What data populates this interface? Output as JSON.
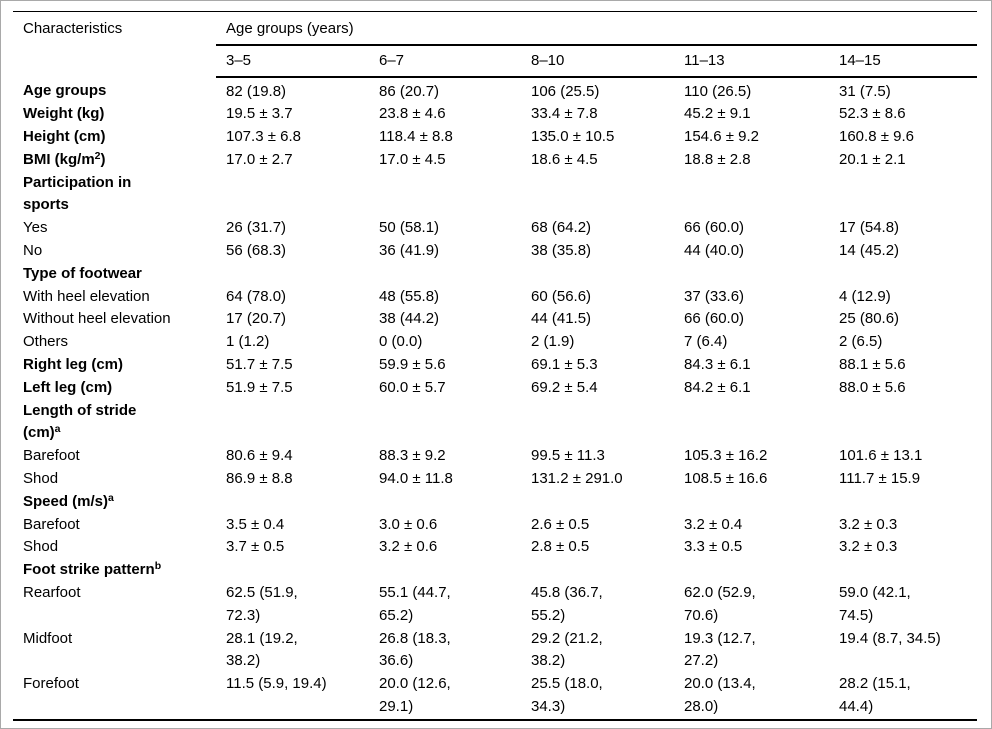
{
  "table": {
    "header": {
      "characteristics": "Characteristics",
      "group_title": "Age groups (years)",
      "age_groups": [
        "3–5",
        "6–7",
        "8–10",
        "11–13",
        "14–15"
      ]
    },
    "rows": [
      {
        "label": "Age groups",
        "bold": true,
        "values": [
          "82 (19.8)",
          "86 (20.7)",
          "106 (25.5)",
          "110 (26.5)",
          "31 (7.5)"
        ]
      },
      {
        "label": "Weight (kg)",
        "bold": true,
        "values": [
          "19.5 ± 3.7",
          "23.8 ± 4.6",
          "33.4 ± 7.8",
          "45.2 ± 9.1",
          "52.3 ± 8.6"
        ]
      },
      {
        "label": "Height (cm)",
        "bold": true,
        "values": [
          "107.3 ± 6.8",
          "118.4 ± 8.8",
          "135.0 ± 10.5",
          "154.6 ± 9.2",
          "160.8 ± 9.6"
        ]
      },
      {
        "label": "BMI (kg/m",
        "sup": "2",
        "label_post": ")",
        "bold": true,
        "values": [
          "17.0 ± 2.7",
          "17.0 ± 4.5",
          "18.6 ± 4.5",
          "18.8 ± 2.8",
          "20.1 ± 2.1"
        ]
      },
      {
        "label": "Participation in\nsports",
        "bold": true,
        "values": [
          "",
          "",
          "",
          "",
          ""
        ]
      },
      {
        "label": "Yes",
        "bold": false,
        "values": [
          "26 (31.7)",
          "50 (58.1)",
          "68 (64.2)",
          "66 (60.0)",
          "17 (54.8)"
        ]
      },
      {
        "label": "No",
        "bold": false,
        "values": [
          "56 (68.3)",
          "36 (41.9)",
          "38 (35.8)",
          "44 (40.0)",
          "14 (45.2)"
        ]
      },
      {
        "label": "Type of footwear",
        "bold": true,
        "values": [
          "",
          "",
          "",
          "",
          ""
        ]
      },
      {
        "label": "With heel elevation",
        "bold": false,
        "values": [
          "64 (78.0)",
          "48 (55.8)",
          "60 (56.6)",
          "37 (33.6)",
          "4 (12.9)"
        ]
      },
      {
        "label": "Without heel elevation",
        "bold": false,
        "values": [
          "17 (20.7)",
          "38 (44.2)",
          "44 (41.5)",
          "66 (60.0)",
          "25 (80.6)"
        ]
      },
      {
        "label": "Others",
        "bold": false,
        "values": [
          "1 (1.2)",
          "0 (0.0)",
          "2 (1.9)",
          "7 (6.4)",
          "2 (6.5)"
        ]
      },
      {
        "label": "Right leg (cm)",
        "bold": true,
        "values": [
          "51.7 ± 7.5",
          "59.9 ± 5.6",
          "69.1 ± 5.3",
          "84.3 ± 6.1",
          "88.1 ± 5.6"
        ]
      },
      {
        "label": "Left leg (cm)",
        "bold": true,
        "values": [
          "51.9 ± 7.5",
          "60.0 ± 5.7",
          "69.2 ± 5.4",
          "84.2 ± 6.1",
          "88.0 ± 5.6"
        ]
      },
      {
        "label": "Length of stride\n(cm)",
        "sup": "a",
        "bold": true,
        "values": [
          "",
          "",
          "",
          "",
          ""
        ]
      },
      {
        "label": "Barefoot",
        "bold": false,
        "values": [
          "80.6 ± 9.4",
          "88.3 ± 9.2",
          "99.5 ± 11.3",
          "105.3 ± 16.2",
          "101.6 ± 13.1"
        ]
      },
      {
        "label": "Shod",
        "bold": false,
        "values": [
          "86.9 ± 8.8",
          "94.0 ± 11.8",
          "131.2 ± 291.0",
          "108.5 ± 16.6",
          "111.7 ± 15.9"
        ]
      },
      {
        "label": "Speed (m/s)",
        "sup": "a",
        "bold": true,
        "values": [
          "",
          "",
          "",
          "",
          ""
        ]
      },
      {
        "label": "Barefoot",
        "bold": false,
        "values": [
          "3.5 ± 0.4",
          "3.0 ± 0.6",
          "2.6 ± 0.5",
          "3.2 ± 0.4",
          "3.2 ± 0.3"
        ]
      },
      {
        "label": "Shod",
        "bold": false,
        "values": [
          "3.7 ± 0.5",
          "3.2 ± 0.6",
          "2.8 ± 0.5",
          "3.3 ± 0.5",
          "3.2 ± 0.3"
        ]
      },
      {
        "label": "Foot strike pattern",
        "sup": "b",
        "bold": true,
        "values": [
          "",
          "",
          "",
          "",
          ""
        ]
      },
      {
        "label": "Rearfoot",
        "bold": false,
        "values": [
          "62.5 (51.9,\n72.3)",
          "55.1 (44.7,\n65.2)",
          "45.8 (36.7,\n55.2)",
          "62.0 (52.9,\n70.6)",
          "59.0 (42.1,\n74.5)"
        ]
      },
      {
        "label": "Midfoot",
        "bold": false,
        "values": [
          "28.1 (19.2,\n38.2)",
          "26.8 (18.3,\n36.6)",
          "29.2 (21.2,\n38.2)",
          "19.3 (12.7,\n27.2)",
          "19.4 (8.7, 34.5)"
        ]
      },
      {
        "label": "Forefoot",
        "bold": false,
        "values": [
          "11.5 (5.9, 19.4)",
          "20.0 (12.6,\n29.1)",
          "25.5 (18.0,\n34.3)",
          "20.0 (13.4,\n28.0)",
          "28.2 (15.1,\n44.4)"
        ]
      }
    ]
  }
}
